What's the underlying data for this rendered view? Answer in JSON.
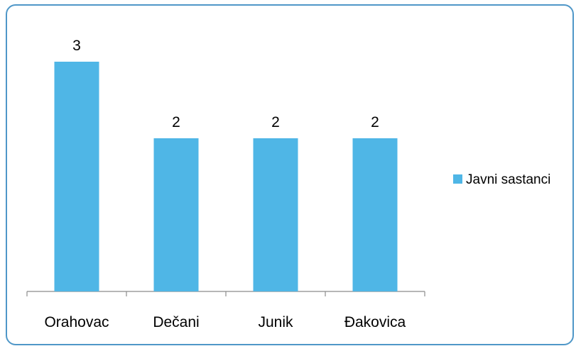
{
  "chart_data": {
    "type": "bar",
    "categories": [
      "Orahovac",
      "Dečani",
      "Junik",
      "Đakovica"
    ],
    "series": [
      {
        "name": "Javni sastanci",
        "values": [
          3,
          2,
          2,
          2
        ],
        "color": "#4fb6e6"
      }
    ],
    "data_labels": true,
    "ylim": [
      0,
      3
    ],
    "grid": false,
    "legend": "right"
  }
}
